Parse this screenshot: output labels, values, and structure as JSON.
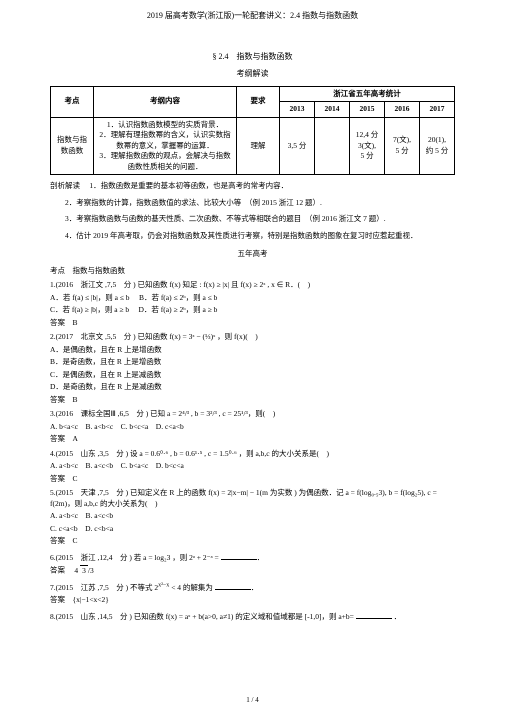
{
  "header": {
    "title": "2019 届高考数学(浙江版)一轮配套讲义：2.4 指数与指数函数"
  },
  "section": {
    "code": "§ 2.4　指数与指数函数",
    "sub": "考纲解读"
  },
  "table": {
    "header_stat": "浙江省五年高考统计",
    "head_point": "考点",
    "head_content": "考纲内容",
    "head_req": "要求",
    "years": [
      "2013",
      "2014",
      "2015",
      "2016",
      "2017"
    ],
    "row1_point": "指数与指数函数",
    "row1_content_1": "1．认识指数函数模型的实质背景．",
    "row1_content_2": "2．理解有理指数幂的含义，认识实数指数幂的意义，掌握幂的运算．",
    "row1_content_3": "3．理解指数函数的观点，会解决与指数函数性质相关的问题．",
    "row1_req": "理解",
    "c2013": "3,5 分",
    "c2014": "",
    "c2015a": "12,4 分",
    "c2015b": "3(文),",
    "c2015c": "5 分",
    "c2016a": "7(文),",
    "c2016b": "5 分",
    "c2017a": "20(1),",
    "c2017b": "约 5 分"
  },
  "analysis": {
    "label": "剖析解读",
    "p1": "1．指数函数是重要的基本初等函数，也是高考的常考内容．",
    "p2": "2．考察指数的计算，指数函数值的求法、比较大小等　（例 2015 浙江 12 题）.",
    "p3": "3．考察指数函数与函数的基天性质、二次函数、不等式等相联合的题目　（例 2016 浙江文 7 题）.",
    "p4": "4．估计 2019 年高考取，仍会对指数函数及其性质进行考察，特别是指数函数的图象在复习时应惹起重视．"
  },
  "fiveyear": {
    "title": "五年高考",
    "topic": "考点　指数与指数函数"
  },
  "q1": {
    "stem": "1.(2016　浙江文 ,7,5　分 ) 已知函数 f(x) 知足 : f(x) ≥ |x| 且 f(x) ≥ 2ˣ , x ∈ R．(　)",
    "A": "A．若 f(a) ≤ |b|，则 a ≤ b",
    "B": "B．若 f(a) ≤ 2ᵇ，则 a ≤ b",
    "C": "C．若 f(a) ≥ |b|，则 a ≥ b",
    "D": "D．若 f(a) ≥ 2ᵇ，则 a ≥ b",
    "ans": "答案　B"
  },
  "q2": {
    "stem_a": "2.(2017　北京文 ,5,5　分 ) 已知函数 f(x) = 3ˣ − ",
    "stem_b": " ，则 f(x)(　)",
    "A": "A．是偶函数，且在 R 上是增函数",
    "B": "B．是奇函数，且在 R 上是增函数",
    "C": "C．是偶函数，且在 R 上是减函数",
    "D": "D．是奇函数，且在 R 上是减函数",
    "ans": "答案　B"
  },
  "q3": {
    "stem": "3.(2016　课标全国Ⅲ ,6,5　分 ) 已知 a = 2⁴/³ , b = 3²/³ , c = 25¹/³，则(　)",
    "opts": "A. b<a<c　B. a<b<c　C. b<c<a　D. c<a<b",
    "ans": "答案　A"
  },
  "q4": {
    "stem": "4.(2015　山东 ,3,5　分 ) 设 a = 0.6⁰·⁶ , b = 0.6¹·⁵ , c = 1.5⁰·⁶ ，则 a,b,c 的大小关系是(　)",
    "opts": "A. a<b<c　B. a<c<b　C. b<a<c　D. b<c<a",
    "ans": "答案　C"
  },
  "q5": {
    "stem": "5.(2015　天津 ,7,5　分 ) 已知定义在 R 上的函数 f(x) = 2|x−m| − 1(m 为实数 ) 为偶函数．记 a = f(log₀.₅3), b = f(log₂5), c = f(2m)，则 a,b,c 的大小关系为(　)",
    "opts": "A. a<b<c　B. a<c<b",
    "opts2": "C. c<a<b　D. c<b<a",
    "ans": "答案　C"
  },
  "q6": {
    "stem": "6.(2015　浙江 ,12,4　分 ) 若 a = log₂3 ，则 2ᵃ + 2⁻ᵃ =",
    "ans_label": "答案",
    "ans_val": "4/3",
    "sqrt": "√3"
  },
  "q7": {
    "stem_a": "7.(2015　江苏 ,7,5　分 ) 不等式 2",
    "exp": "x²−x",
    "stem_b": " < 4 的解集为",
    "ans": "答案　{x|−1<x<2}"
  },
  "q8": {
    "stem_a": "8.(2015　山东 ,14,5　分 ) 已知函数 f(x) = aˣ + b(a>0, a≠1) 的定义域和值域都是",
    "stem_b": "[-1,0]，则 a+b=",
    "blank": "．"
  },
  "footer": {
    "page": "1 / 4"
  }
}
